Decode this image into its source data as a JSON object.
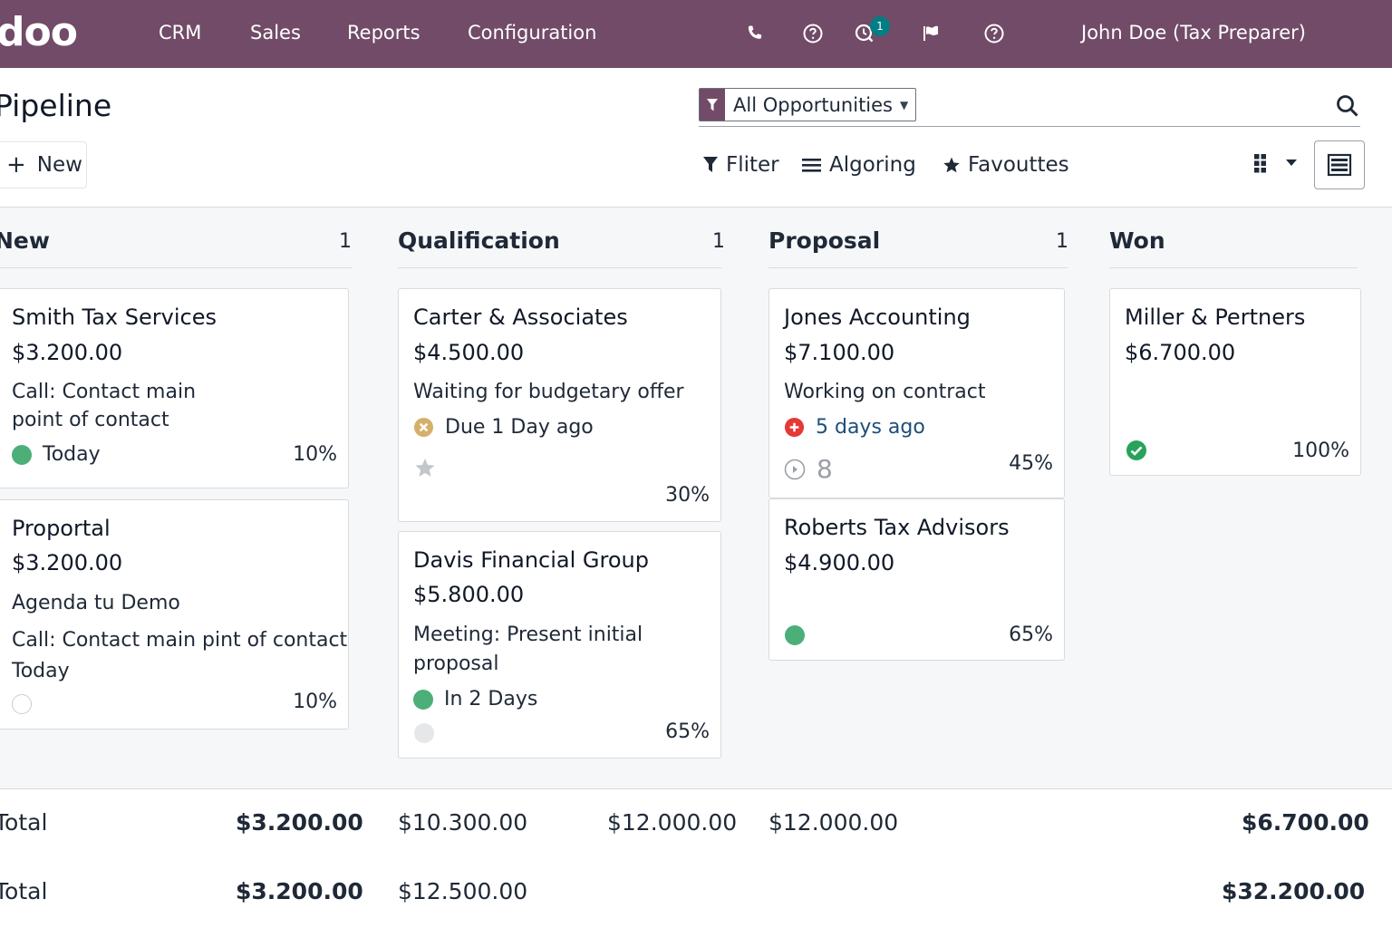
{
  "navbar": {
    "logo": "doo",
    "menu": [
      "CRM",
      "Sales",
      "Reports",
      "Configuration"
    ],
    "icons": [
      "phone-icon",
      "help-circle-icon",
      "activity-icon",
      "flag-icon",
      "question-icon"
    ],
    "activity_badge": "1",
    "user": "John Doe (Tax Preparer)",
    "color": "#714b67"
  },
  "control": {
    "title": "Pipeline",
    "new_label": "New",
    "facet_label": "All Opportunities",
    "filter_label": "Fliter",
    "group_label": "Algoring",
    "favorites_label": "Favouttes"
  },
  "columns": [
    {
      "title": "New",
      "count": "1"
    },
    {
      "title": "Qualification",
      "count": "1"
    },
    {
      "title": "Proposal",
      "count": "1"
    },
    {
      "title": "Won",
      "count": ""
    }
  ],
  "cards": {
    "smith": {
      "title": "Smith Tax Services",
      "amount": "$3.200.00",
      "desc1": "Call: Contact main",
      "desc2": "point of contact",
      "activity": "Today",
      "pct": "10%"
    },
    "proportal": {
      "title": "Proportal",
      "amount": "$3.200.00",
      "desc1": "Agenda tu Demo",
      "desc2": "Call: Contact main pint of contact",
      "desc3": "Today",
      "pct": "10%"
    },
    "carter": {
      "title": "Carter & Associates",
      "amount": "$4.500.00",
      "desc": "Waiting for budgetary offer",
      "activity": "Due 1 Day ago",
      "pct": "30%"
    },
    "davis": {
      "title": "Davis Financial Group",
      "amount": "$5.800.00",
      "desc1": "Meeting: Present initial",
      "desc2": "proposal",
      "activity": "In 2 Days",
      "pct": "65%"
    },
    "jones": {
      "title": "Jones Accounting",
      "amount": "$7.100.00",
      "desc": "Working on contract",
      "activity": "5 days ago",
      "count": "8",
      "pct": "45%"
    },
    "roberts": {
      "title": "Roberts Tax Advisors",
      "amount": "$4.900.00",
      "pct": "65%"
    },
    "miller": {
      "title": "Miller & Pertners",
      "amount": "$6.700.00",
      "pct": "100%"
    }
  },
  "totals": {
    "row1": {
      "label": "Total",
      "new": "$3.200.00",
      "qual_a": "$10.300.00",
      "qual_b": "$12.000.00",
      "proposal": "$12.000.00",
      "won": "$6.700.00"
    },
    "row2": {
      "label": "Total",
      "new": "$3.200.00",
      "qual": "$12.500.00",
      "won": "$32.200.00"
    }
  }
}
